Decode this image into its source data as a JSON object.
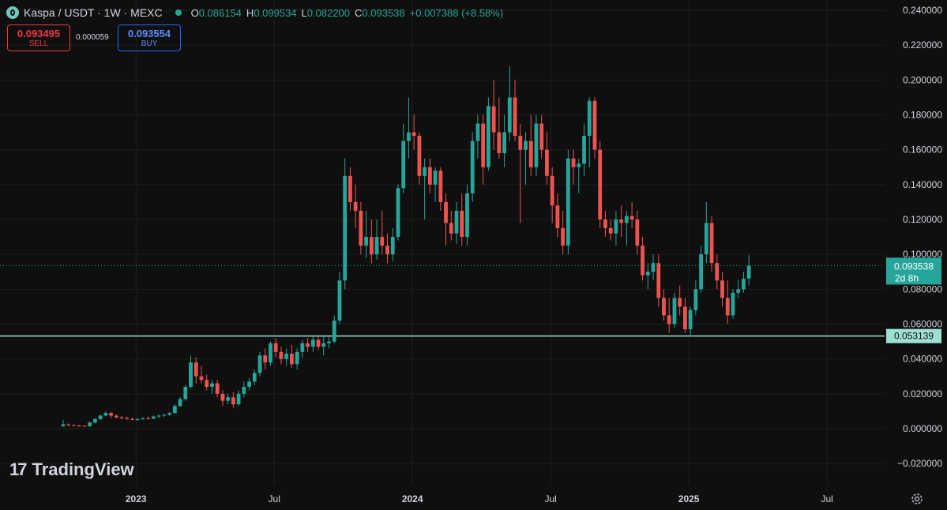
{
  "header": {
    "symbol": "Kaspa / USDT · 1W · MEXC",
    "ohlc": {
      "o_label": "O",
      "o": "0.086154",
      "h_label": "H",
      "h": "0.099534",
      "l_label": "L",
      "l": "0.082200",
      "c_label": "C",
      "c": "0.093538",
      "change": "+0.007388 (+8.58%)"
    }
  },
  "trade": {
    "sell_price": "0.093495",
    "sell_label": "SELL",
    "spread": "0.000059",
    "buy_price": "0.093554",
    "buy_label": "BUY"
  },
  "brand": {
    "name": "TradingView",
    "mark": "17"
  },
  "colors": {
    "up": "#26a69a",
    "down": "#ef5350",
    "line": "#9fe0d5",
    "bg": "#0f0f0f",
    "grid": "#1f1f1f"
  },
  "chart_data": {
    "type": "candlestick",
    "title": "",
    "ylim": [
      -0.03,
      0.245
    ],
    "y_ticks": [
      "0.240000",
      "0.220000",
      "0.200000",
      "0.180000",
      "0.160000",
      "0.140000",
      "0.120000",
      "0.100000",
      "0.080000",
      "0.060000",
      "0.040000",
      "0.020000",
      "0.000000",
      "−0.020000"
    ],
    "x_tick_labels": [
      {
        "label": "2023",
        "week": 14
      },
      {
        "label": "Jul",
        "week": 40
      },
      {
        "label": "2024",
        "week": 66
      },
      {
        "label": "Jul",
        "week": 92
      },
      {
        "label": "2025",
        "week": 118
      },
      {
        "label": "Jul",
        "week": 144
      }
    ],
    "grid": true,
    "last_price": {
      "value": 0.093538,
      "label": "0.093538",
      "countdown": "2d 8h"
    },
    "horizontal_line": {
      "value": 0.053139,
      "label": "0.053139"
    },
    "weeks_start": 0,
    "candles": [
      [
        0.0015,
        0.005,
        0.001,
        0.0025
      ],
      [
        0.0025,
        0.003,
        0.0015,
        0.002
      ],
      [
        0.002,
        0.0025,
        0.0015,
        0.0018
      ],
      [
        0.0018,
        0.0022,
        0.0012,
        0.0016
      ],
      [
        0.0016,
        0.002,
        0.0012,
        0.0014
      ],
      [
        0.0014,
        0.004,
        0.0012,
        0.0035
      ],
      [
        0.0035,
        0.006,
        0.003,
        0.0055
      ],
      [
        0.0055,
        0.008,
        0.005,
        0.0075
      ],
      [
        0.0075,
        0.01,
        0.007,
        0.009
      ],
      [
        0.009,
        0.0095,
        0.006,
        0.0075
      ],
      [
        0.0075,
        0.008,
        0.006,
        0.0065
      ],
      [
        0.0065,
        0.0072,
        0.0055,
        0.006
      ],
      [
        0.006,
        0.007,
        0.005,
        0.0055
      ],
      [
        0.0055,
        0.0065,
        0.0048,
        0.005
      ],
      [
        0.005,
        0.006,
        0.0045,
        0.0055
      ],
      [
        0.0055,
        0.0065,
        0.005,
        0.006
      ],
      [
        0.006,
        0.007,
        0.0052,
        0.0058
      ],
      [
        0.0058,
        0.0075,
        0.0055,
        0.007
      ],
      [
        0.007,
        0.008,
        0.006,
        0.0075
      ],
      [
        0.0075,
        0.0085,
        0.0068,
        0.008
      ],
      [
        0.008,
        0.0095,
        0.0075,
        0.009
      ],
      [
        0.009,
        0.014,
        0.0085,
        0.013
      ],
      [
        0.013,
        0.018,
        0.0125,
        0.017
      ],
      [
        0.017,
        0.025,
        0.016,
        0.024
      ],
      [
        0.024,
        0.042,
        0.023,
        0.038
      ],
      [
        0.038,
        0.041,
        0.026,
        0.03
      ],
      [
        0.03,
        0.036,
        0.026,
        0.028
      ],
      [
        0.028,
        0.031,
        0.022,
        0.024
      ],
      [
        0.024,
        0.028,
        0.02,
        0.026
      ],
      [
        0.026,
        0.028,
        0.018,
        0.02
      ],
      [
        0.02,
        0.022,
        0.013,
        0.016
      ],
      [
        0.016,
        0.02,
        0.014,
        0.018
      ],
      [
        0.018,
        0.021,
        0.012,
        0.014
      ],
      [
        0.014,
        0.022,
        0.013,
        0.02
      ],
      [
        0.02,
        0.027,
        0.018,
        0.024
      ],
      [
        0.024,
        0.029,
        0.022,
        0.027
      ],
      [
        0.027,
        0.034,
        0.025,
        0.032
      ],
      [
        0.032,
        0.044,
        0.03,
        0.042
      ],
      [
        0.042,
        0.046,
        0.034,
        0.038
      ],
      [
        0.038,
        0.05,
        0.036,
        0.049
      ],
      [
        0.049,
        0.052,
        0.041,
        0.044
      ],
      [
        0.044,
        0.047,
        0.037,
        0.04
      ],
      [
        0.04,
        0.046,
        0.036,
        0.043
      ],
      [
        0.043,
        0.048,
        0.035,
        0.037
      ],
      [
        0.037,
        0.046,
        0.034,
        0.044
      ],
      [
        0.044,
        0.051,
        0.041,
        0.049
      ],
      [
        0.049,
        0.052,
        0.044,
        0.047
      ],
      [
        0.047,
        0.053,
        0.044,
        0.051
      ],
      [
        0.051,
        0.053,
        0.045,
        0.047
      ],
      [
        0.047,
        0.053,
        0.042,
        0.049
      ],
      [
        0.049,
        0.053,
        0.046,
        0.05
      ],
      [
        0.05,
        0.065,
        0.049,
        0.062
      ],
      [
        0.062,
        0.09,
        0.06,
        0.085
      ],
      [
        0.085,
        0.155,
        0.08,
        0.145
      ],
      [
        0.145,
        0.15,
        0.125,
        0.13
      ],
      [
        0.13,
        0.14,
        0.115,
        0.125
      ],
      [
        0.125,
        0.13,
        0.1,
        0.105
      ],
      [
        0.105,
        0.125,
        0.098,
        0.11
      ],
      [
        0.11,
        0.12,
        0.095,
        0.1
      ],
      [
        0.1,
        0.12,
        0.097,
        0.11
      ],
      [
        0.11,
        0.125,
        0.1,
        0.105
      ],
      [
        0.105,
        0.112,
        0.095,
        0.1
      ],
      [
        0.1,
        0.115,
        0.096,
        0.11
      ],
      [
        0.11,
        0.14,
        0.108,
        0.138
      ],
      [
        0.138,
        0.175,
        0.135,
        0.165
      ],
      [
        0.165,
        0.19,
        0.155,
        0.17
      ],
      [
        0.17,
        0.18,
        0.16,
        0.168
      ],
      [
        0.168,
        0.17,
        0.14,
        0.145
      ],
      [
        0.145,
        0.155,
        0.12,
        0.15
      ],
      [
        0.15,
        0.155,
        0.135,
        0.14
      ],
      [
        0.14,
        0.15,
        0.13,
        0.148
      ],
      [
        0.148,
        0.15,
        0.125,
        0.13
      ],
      [
        0.13,
        0.135,
        0.105,
        0.118
      ],
      [
        0.118,
        0.125,
        0.108,
        0.112
      ],
      [
        0.112,
        0.13,
        0.106,
        0.125
      ],
      [
        0.125,
        0.135,
        0.105,
        0.11
      ],
      [
        0.11,
        0.14,
        0.105,
        0.135
      ],
      [
        0.135,
        0.17,
        0.13,
        0.165
      ],
      [
        0.165,
        0.18,
        0.155,
        0.175
      ],
      [
        0.175,
        0.18,
        0.14,
        0.15
      ],
      [
        0.15,
        0.19,
        0.148,
        0.185
      ],
      [
        0.185,
        0.2,
        0.16,
        0.17
      ],
      [
        0.17,
        0.19,
        0.155,
        0.158
      ],
      [
        0.158,
        0.18,
        0.15,
        0.17
      ],
      [
        0.17,
        0.208,
        0.165,
        0.19
      ],
      [
        0.19,
        0.2,
        0.165,
        0.168
      ],
      [
        0.168,
        0.175,
        0.118,
        0.16
      ],
      [
        0.16,
        0.17,
        0.14,
        0.165
      ],
      [
        0.165,
        0.18,
        0.145,
        0.15
      ],
      [
        0.15,
        0.18,
        0.145,
        0.175
      ],
      [
        0.175,
        0.18,
        0.155,
        0.16
      ],
      [
        0.16,
        0.17,
        0.14,
        0.145
      ],
      [
        0.145,
        0.15,
        0.118,
        0.128
      ],
      [
        0.128,
        0.135,
        0.11,
        0.115
      ],
      [
        0.115,
        0.125,
        0.1,
        0.105
      ],
      [
        0.105,
        0.16,
        0.1,
        0.155
      ],
      [
        0.155,
        0.16,
        0.14,
        0.15
      ],
      [
        0.15,
        0.155,
        0.135,
        0.152
      ],
      [
        0.152,
        0.175,
        0.145,
        0.168
      ],
      [
        0.168,
        0.19,
        0.15,
        0.188
      ],
      [
        0.188,
        0.19,
        0.155,
        0.16
      ],
      [
        0.16,
        0.165,
        0.115,
        0.12
      ],
      [
        0.12,
        0.125,
        0.11,
        0.115
      ],
      [
        0.115,
        0.12,
        0.108,
        0.112
      ],
      [
        0.112,
        0.125,
        0.105,
        0.12
      ],
      [
        0.12,
        0.128,
        0.11,
        0.118
      ],
      [
        0.118,
        0.125,
        0.105,
        0.122
      ],
      [
        0.122,
        0.13,
        0.115,
        0.12
      ],
      [
        0.12,
        0.125,
        0.1,
        0.105
      ],
      [
        0.105,
        0.11,
        0.085,
        0.088
      ],
      [
        0.088,
        0.095,
        0.08,
        0.09
      ],
      [
        0.09,
        0.1,
        0.085,
        0.095
      ],
      [
        0.095,
        0.1,
        0.07,
        0.075
      ],
      [
        0.075,
        0.08,
        0.062,
        0.065
      ],
      [
        0.065,
        0.075,
        0.055,
        0.06
      ],
      [
        0.06,
        0.078,
        0.058,
        0.075
      ],
      [
        0.075,
        0.082,
        0.065,
        0.07
      ],
      [
        0.07,
        0.075,
        0.055,
        0.057
      ],
      [
        0.057,
        0.07,
        0.053,
        0.068
      ],
      [
        0.068,
        0.085,
        0.065,
        0.08
      ],
      [
        0.08,
        0.105,
        0.078,
        0.1
      ],
      [
        0.1,
        0.13,
        0.095,
        0.118
      ],
      [
        0.118,
        0.122,
        0.09,
        0.095
      ],
      [
        0.095,
        0.1,
        0.08,
        0.085
      ],
      [
        0.085,
        0.09,
        0.07,
        0.075
      ],
      [
        0.075,
        0.085,
        0.06,
        0.065
      ],
      [
        0.065,
        0.08,
        0.063,
        0.078
      ],
      [
        0.078,
        0.085,
        0.075,
        0.08
      ],
      [
        0.08,
        0.09,
        0.078,
        0.086
      ],
      [
        0.086154,
        0.099534,
        0.0822,
        0.093538
      ]
    ]
  }
}
